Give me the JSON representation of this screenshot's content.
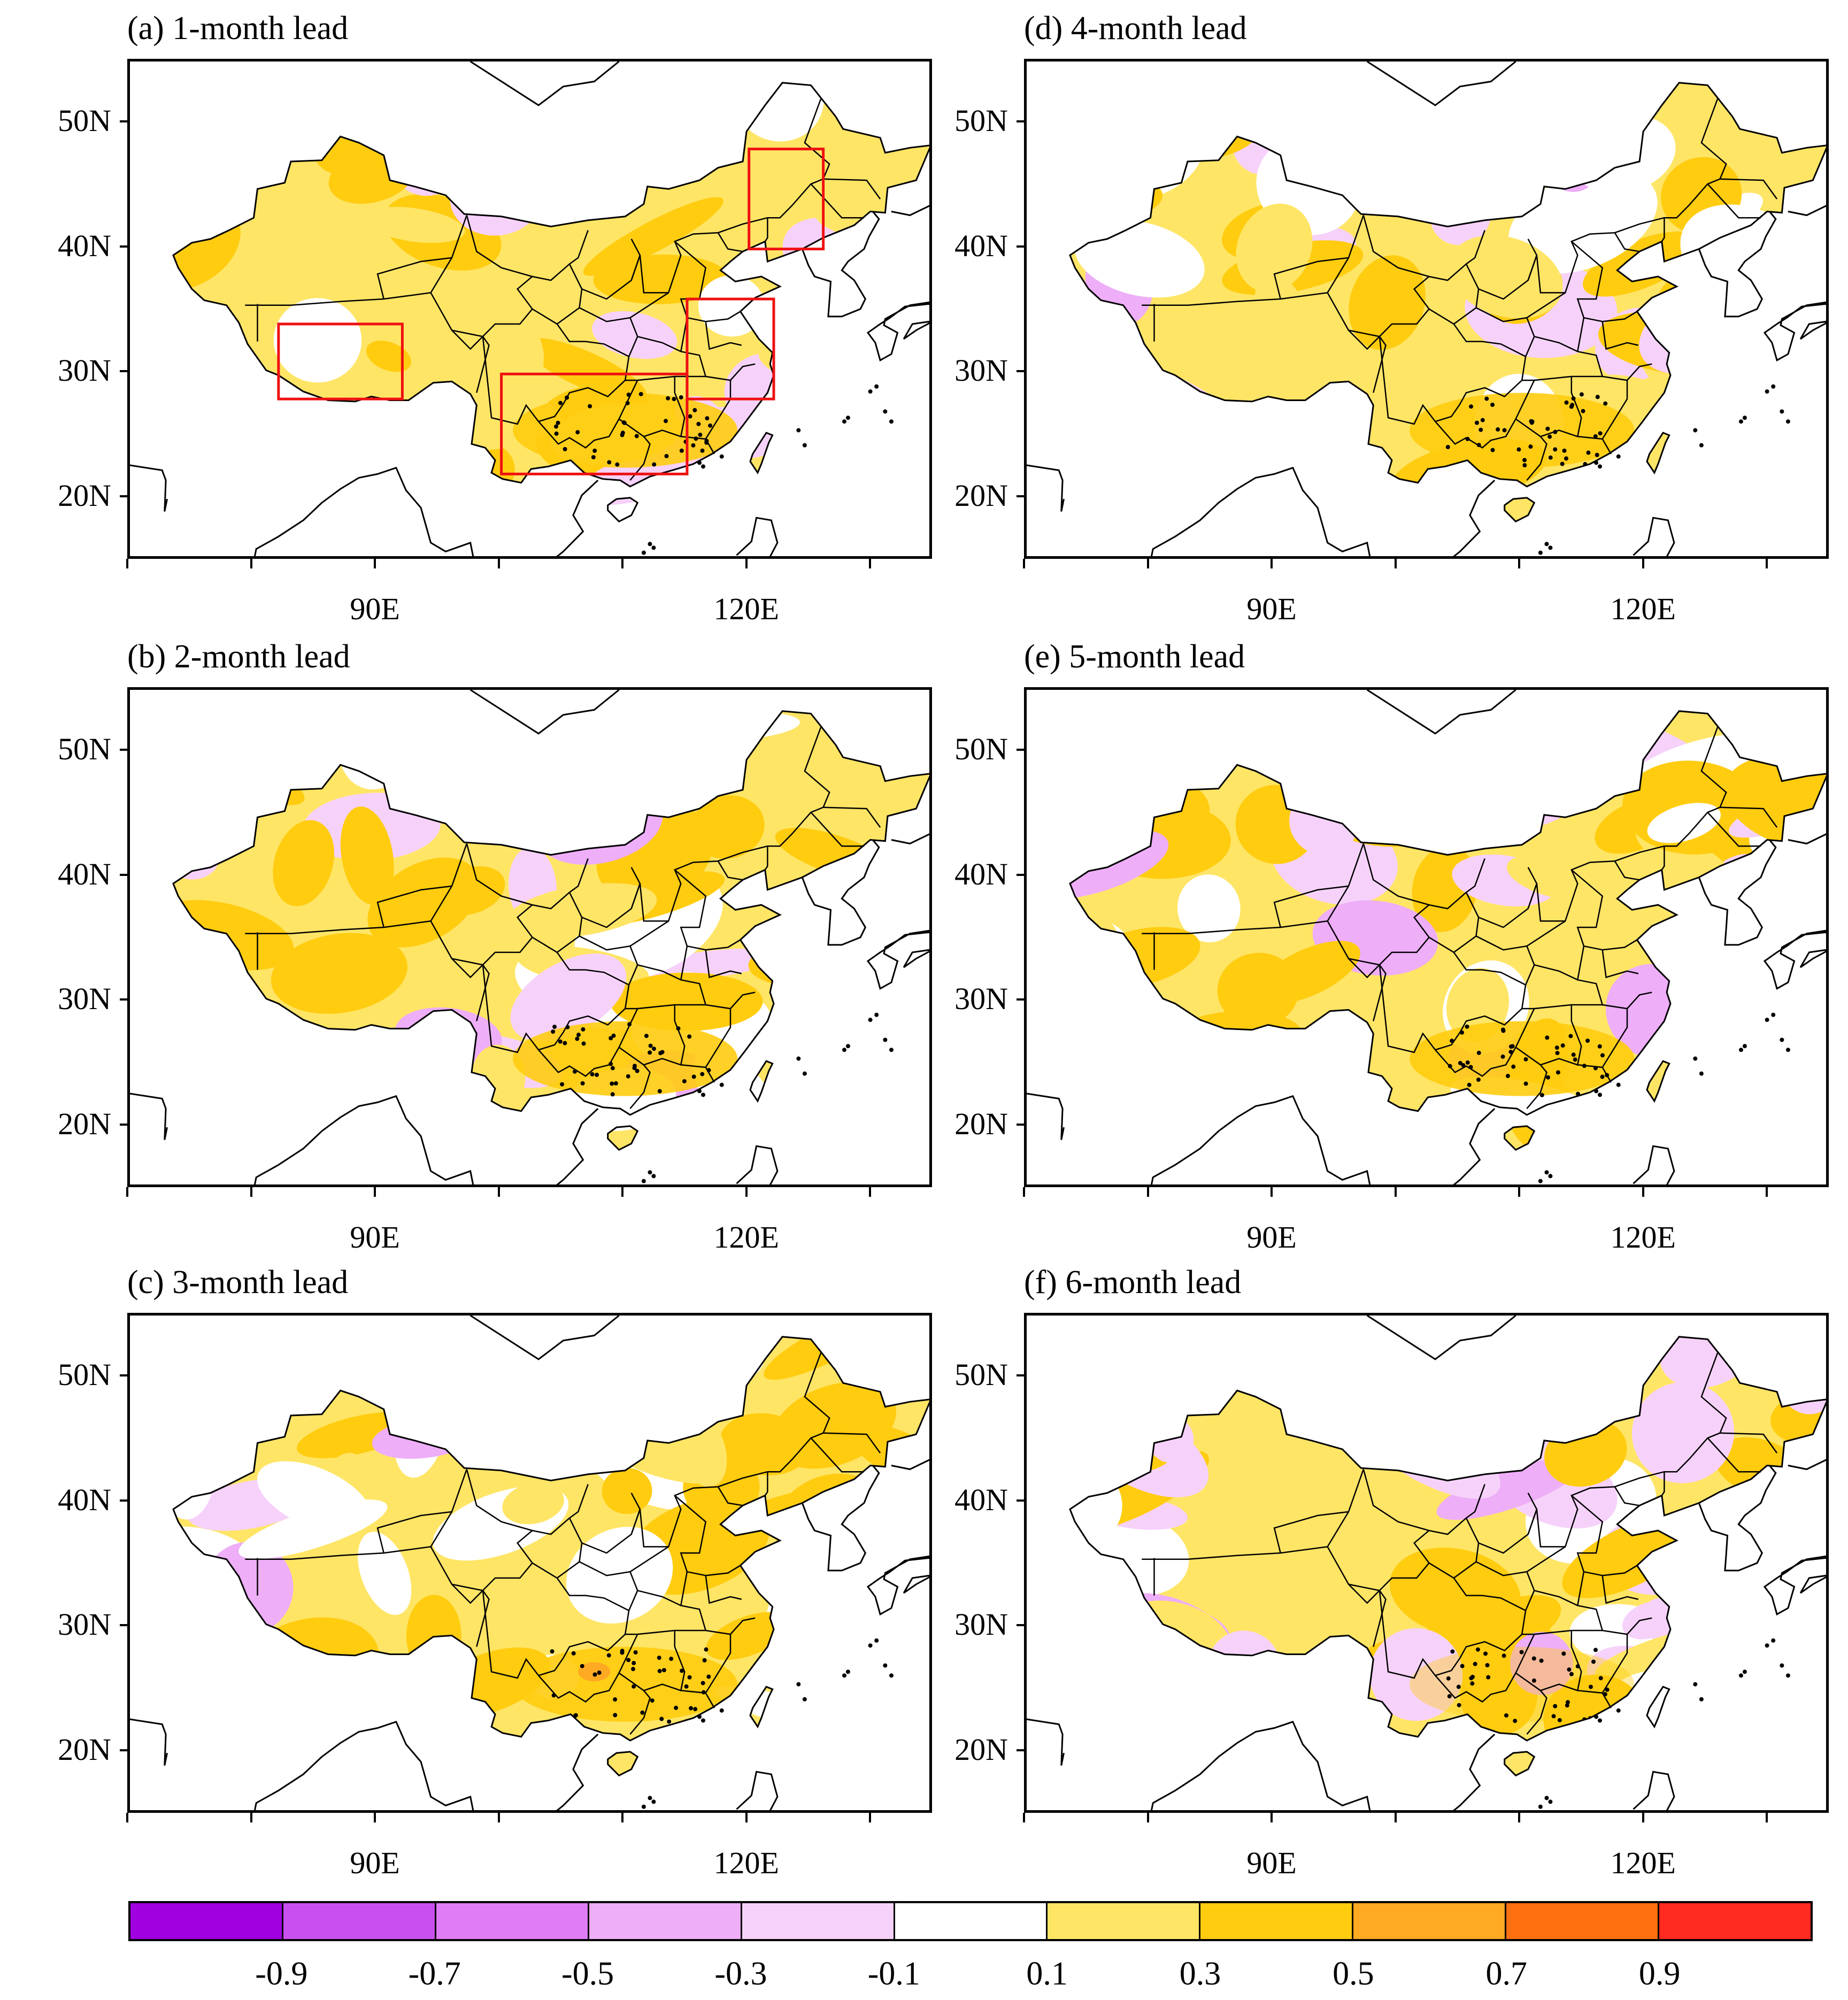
{
  "panels": [
    {
      "id": "a",
      "title": "(a) 1-month lead",
      "col": 0,
      "row": 0,
      "boxes": true,
      "warm": 0.8,
      "seed": 1
    },
    {
      "id": "d",
      "title": "(d) 4-month lead",
      "col": 1,
      "row": 0,
      "boxes": false,
      "warm": 0.7,
      "seed": 4
    },
    {
      "id": "b",
      "title": "(b) 2-month lead",
      "col": 0,
      "row": 1,
      "boxes": false,
      "warm": 0.7,
      "seed": 2
    },
    {
      "id": "e",
      "title": "(e) 5-month lead",
      "col": 1,
      "row": 1,
      "boxes": false,
      "warm": 0.65,
      "seed": 5
    },
    {
      "id": "c",
      "title": "(c) 3-month lead",
      "col": 0,
      "row": 2,
      "boxes": false,
      "warm": 0.75,
      "seed": 3
    },
    {
      "id": "f",
      "title": "(f) 6-month lead",
      "col": 1,
      "row": 2,
      "boxes": false,
      "warm": 0.55,
      "seed": 6
    }
  ],
  "lat_labels": [
    "50N",
    "40N",
    "30N",
    "20N"
  ],
  "lat_values": [
    50,
    40,
    30,
    20
  ],
  "lon_labels": [
    "90E",
    "120E"
  ],
  "lon_values": [
    90,
    120
  ],
  "map_extent": {
    "lon_min": 70,
    "lon_max": 135,
    "lat_min": 15,
    "lat_max": 55
  },
  "colorbar": {
    "colors": [
      "#a000e0",
      "#c850f0",
      "#e07cf5",
      "#eeaef8",
      "#f6d2fb",
      "#ffffff",
      "#ffe566",
      "#ffcc10",
      "#ffaa22",
      "#ff7010",
      "#ff2a20"
    ],
    "labels": [
      "-0.9",
      "-0.7",
      "-0.5",
      "-0.3",
      "-0.1",
      "0.1",
      "0.3",
      "0.5",
      "0.7",
      "0.9"
    ]
  },
  "boxes_a": [
    {
      "lon0": 82,
      "lon1": 92,
      "lat0": 28,
      "lat1": 34
    },
    {
      "lon0": 100,
      "lon1": 115,
      "lat0": 22,
      "lat1": 30
    },
    {
      "lon0": 115,
      "lon1": 122,
      "lat0": 28,
      "lat1": 36
    },
    {
      "lon0": 120,
      "lon1": 126,
      "lat0": 40,
      "lat1": 48
    }
  ]
}
